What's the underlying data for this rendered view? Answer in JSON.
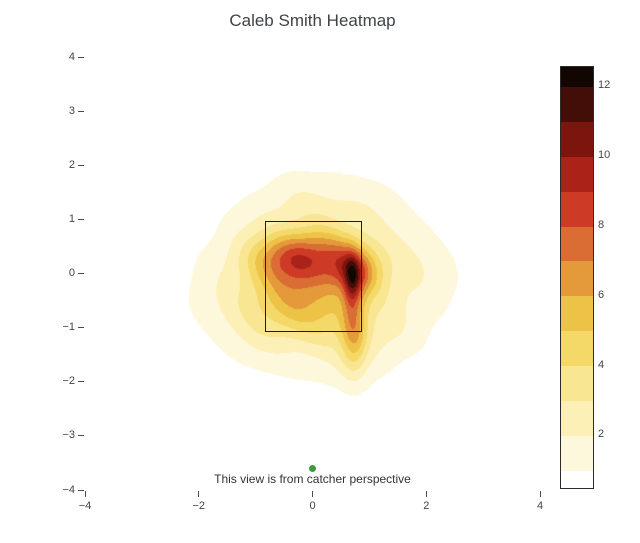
{
  "figure": {
    "title": "Caleb Smith Heatmap",
    "caption": "This view is from catcher perspective",
    "background": "#ffffff"
  },
  "chart_data": {
    "type": "heatmap",
    "subtype": "filled-contour-kde",
    "title": "Caleb Smith Heatmap",
    "caption": "This view is from catcher perspective",
    "xlabel": "",
    "ylabel": "",
    "x_range": [
      -4,
      4
    ],
    "y_range": [
      -4,
      4
    ],
    "x_ticks": [
      -4,
      -2,
      0,
      2,
      4
    ],
    "y_ticks": [
      -4,
      -3,
      -2,
      -1,
      0,
      1,
      2,
      3,
      4
    ],
    "grid": false,
    "legend": "colorbar-right",
    "contour_levels": {
      "start": 1,
      "size": 1,
      "end": 13
    },
    "colorbar": {
      "ticks": [
        2,
        4,
        6,
        8,
        10,
        12
      ],
      "vmin": 0.51,
      "vmax": 12.57,
      "band_colors": [
        "#ffffff",
        "#fdf8dc",
        "#fcf0b7",
        "#f9e692",
        "#f4d968",
        "#edc347",
        "#e4993b",
        "#d96d33",
        "#cd3a26",
        "#ab2318",
        "#7c150e",
        "#430e08",
        "#120603"
      ]
    },
    "strike_zone": {
      "x_left": -0.83,
      "x_right": 0.83,
      "y_bottom": -1.05,
      "y_top": 0.97,
      "line_color": "#1c1c1c"
    },
    "density_peak": {
      "x": 0.71,
      "y": -0.15,
      "value": 12.6
    },
    "density_extent": {
      "x": [
        -2.3,
        2.5
      ],
      "y": [
        -2.3,
        2.2
      ]
    },
    "kernels": [
      [
        0.7,
        -0.18,
        0.1,
        0.34,
        3.4
      ],
      [
        0.74,
        0.04,
        0.34,
        0.32,
        4.2
      ],
      [
        0.73,
        -1.0,
        0.16,
        0.55,
        3.2
      ],
      [
        -0.3,
        0.32,
        0.62,
        0.34,
        4.8
      ],
      [
        -0.5,
        -0.3,
        0.48,
        0.44,
        1.8
      ],
      [
        -0.15,
        -0.8,
        0.6,
        0.42,
        2.2
      ],
      [
        0.25,
        0.0,
        1.05,
        0.88,
        2.3
      ],
      [
        0.15,
        -0.35,
        1.8,
        1.45,
        1.0
      ],
      [
        1.75,
        0.1,
        0.6,
        0.5,
        0.7
      ],
      [
        -1.75,
        -0.45,
        0.55,
        0.45,
        0.6
      ],
      [
        0.15,
        1.5,
        0.52,
        0.42,
        0.55
      ],
      [
        0.85,
        1.25,
        0.48,
        0.42,
        0.6
      ],
      [
        -0.4,
        1.3,
        0.45,
        0.4,
        0.45
      ],
      [
        0.55,
        -1.65,
        0.52,
        0.45,
        0.6
      ],
      [
        1.35,
        -1.1,
        0.5,
        0.42,
        0.65
      ],
      [
        -1.05,
        1.0,
        0.42,
        0.38,
        0.45
      ],
      [
        -1.0,
        -1.3,
        0.5,
        0.42,
        0.5
      ]
    ],
    "ripple": [
      [
        0.05,
        3.1,
        1.2,
        0.8
      ],
      [
        0.045,
        1.9,
        -2.6,
        2.2
      ],
      [
        0.04,
        4.6,
        3.3,
        4.0
      ],
      [
        0.025,
        7.1,
        5.3,
        1.7
      ]
    ],
    "marker": {
      "x": 0,
      "y": -3.6,
      "color": "#3c9c3c"
    }
  },
  "text_colors": {
    "title": "#3f4347",
    "ticks": "#444444",
    "caption": "#343434"
  }
}
